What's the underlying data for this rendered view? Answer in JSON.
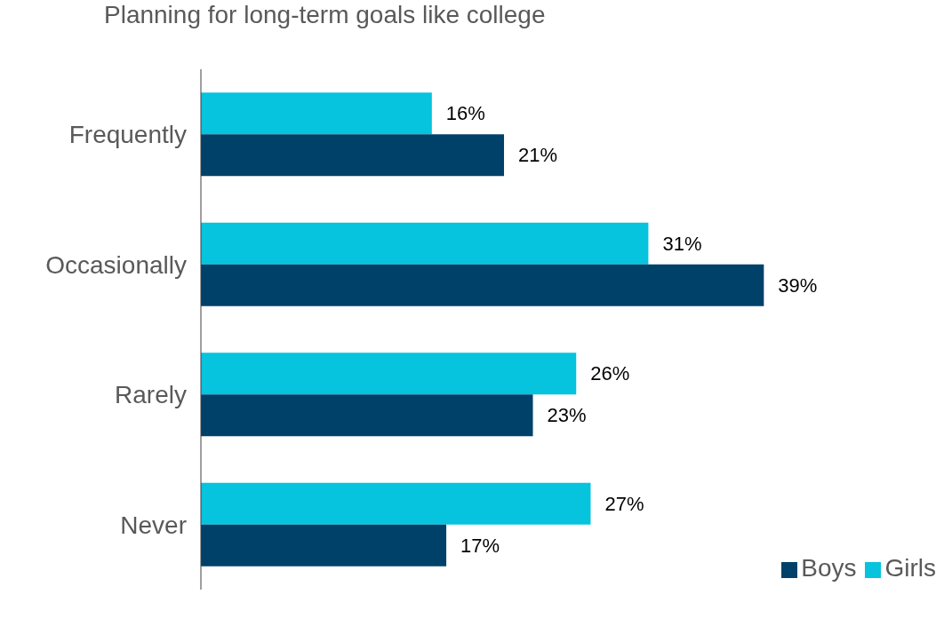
{
  "chart_data": {
    "type": "bar",
    "orientation": "horizontal",
    "title": "Planning for long-term goals like college",
    "categories": [
      "Frequently",
      "Occasionally",
      "Rarely",
      "Never"
    ],
    "series": [
      {
        "name": "Girls",
        "color": "#06c3de",
        "values": [
          16,
          31,
          26,
          27
        ],
        "value_labels": [
          "16%",
          "31%",
          "26%",
          "27%"
        ]
      },
      {
        "name": "Boys",
        "color": "#00416a",
        "values": [
          21,
          39,
          23,
          17
        ],
        "value_labels": [
          "21%",
          "39%",
          "23%",
          "17%"
        ]
      }
    ],
    "legend": "bottom right"
  }
}
